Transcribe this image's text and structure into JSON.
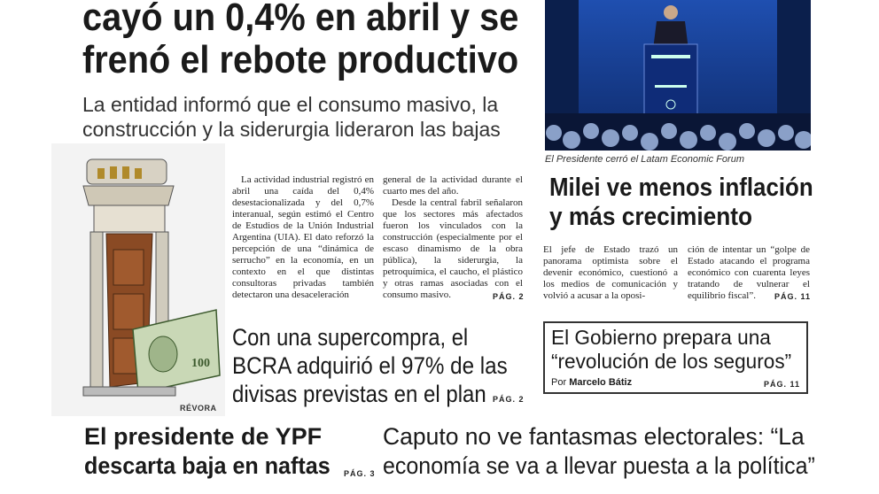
{
  "main_story": {
    "headline": [
      "cayó un 0,4% en abril y se",
      "frenó el rebote productivo"
    ],
    "subheadline": [
      "La entidad informó que el consumo masivo, la",
      "construcción y la siderurgia lideraron las bajas"
    ],
    "body": [
      "La actividad industrial registró en abril una caída del 0,4% desestacionalizada y del 0,7% interanual, según estimó el Centro de Estudios de la Unión Industrial Argentina (UIA). El dato reforzó la percepción de una “dinámica de serrucho” en la economía, en un contexto en el que distintas consultoras privadas también detectaron una desaceleración",
      "general de la actividad durante el cuarto mes del año.",
      "Desde la central fabril señalaron que los sectores más afectados fueron los vinculados con la construcción (especialmente por el escaso dinamismo de la obra pública), la siderurgia, la petroquímica, el caucho, el plástico y otras ramas asociadas con el consumo masivo."
    ],
    "page_ref": "PÁG. 2",
    "cartoon_signature": "RÉVORA"
  },
  "bcra_story": {
    "headline": [
      "Con una supercompra, el",
      "BCRA adquirió el 97% de las",
      "divisas previstas en el plan"
    ],
    "page_ref": "PÁG. 2"
  },
  "photo_caption": "El Presidente cerró el Latam Economic Forum",
  "milei_story": {
    "headline": [
      "Milei ve menos inflación",
      "y más crecimiento"
    ],
    "body": [
      "El jefe de Estado trazó un panorama optimista sobre el devenir económico, cuestionó a los medios de comunicación y volvió a acusar a la oposi-",
      "ción de intentar un “golpe de Estado atacando el programa económico con cuarenta leyes tratando de vulnerar el equilibrio fiscal”."
    ],
    "page_ref": "PÁG. 11"
  },
  "seguros_story": {
    "headline": [
      "El Gobierno prepara una",
      "“revolución de los seguros”"
    ],
    "byline_prefix": "Por",
    "author": "Marcelo Bátiz",
    "page_ref": "PÁG. 11"
  },
  "ypf_story": {
    "headline": [
      "El presidente de YPF",
      "descarta baja en naftas"
    ],
    "page_ref": "PÁG. 3"
  },
  "caputo_story": {
    "headline": [
      "Caputo no ve fantasmas electorales: “La",
      "economía se va a llevar puesta a la política”"
    ]
  }
}
